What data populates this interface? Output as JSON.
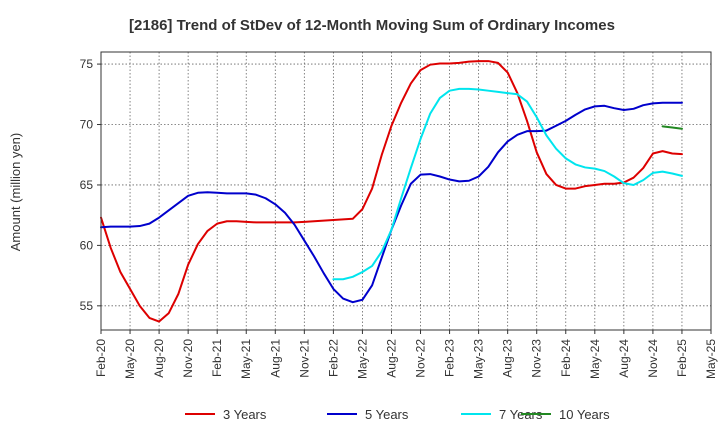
{
  "chart_data": {
    "type": "line",
    "title": "[2186]  Trend of StDev of 12-Month Moving Sum of Ordinary Incomes",
    "xlabel": "",
    "ylabel": "Amount (million yen)",
    "ylim": [
      53,
      76
    ],
    "yticks": [
      55,
      60,
      65,
      70,
      75
    ],
    "grid": true,
    "legend_position": "bottom",
    "x_tick_labels": [
      "Feb-20",
      "May-20",
      "Aug-20",
      "Nov-20",
      "Feb-21",
      "May-21",
      "Aug-21",
      "Nov-21",
      "Feb-22",
      "May-22",
      "Aug-22",
      "Nov-22",
      "Feb-23",
      "May-23",
      "Aug-23",
      "Nov-23",
      "Feb-24",
      "May-24",
      "Aug-24",
      "Nov-24",
      "Feb-25",
      "May-25"
    ],
    "x_axis_note": "x values are months since Feb-20 (0 = Feb-20, 63 = May-25)",
    "xlim": [
      0,
      63
    ],
    "series": [
      {
        "name": "3 Years",
        "color": "#dd0000",
        "x": [
          0,
          1,
          2,
          3,
          4,
          5,
          6,
          7,
          8,
          9,
          10,
          11,
          12,
          13,
          14,
          15,
          16,
          17,
          18,
          19,
          20,
          21,
          22,
          23,
          24,
          25,
          26,
          27,
          28,
          29,
          30,
          31,
          32,
          33,
          34,
          35,
          36,
          37,
          38,
          39,
          40,
          41,
          42,
          43,
          44,
          45,
          46,
          47,
          48,
          49,
          50,
          51,
          52,
          53,
          54,
          55,
          56,
          57,
          58,
          59,
          60
        ],
        "values": [
          62.3,
          59.8,
          57.8,
          56.4,
          55.0,
          54.0,
          53.7,
          54.4,
          56.0,
          58.4,
          60.1,
          61.2,
          61.8,
          62.0,
          62.0,
          61.95,
          61.9,
          61.9,
          61.9,
          61.9,
          61.9,
          61.95,
          62.0,
          62.05,
          62.1,
          62.15,
          62.2,
          63.0,
          64.7,
          67.5,
          69.9,
          71.8,
          73.4,
          74.5,
          74.95,
          75.05,
          75.05,
          75.1,
          75.2,
          75.25,
          75.25,
          75.1,
          74.3,
          72.6,
          70.3,
          67.7,
          65.9,
          65.0,
          64.7,
          64.7,
          64.9,
          65.0,
          65.1,
          65.1,
          65.2,
          65.6,
          66.4,
          67.6,
          67.8,
          67.6,
          67.55
        ]
      },
      {
        "name": "5 Years",
        "color": "#0000cc",
        "x": [
          0,
          1,
          2,
          3,
          4,
          5,
          6,
          7,
          8,
          9,
          10,
          11,
          12,
          13,
          14,
          15,
          16,
          17,
          18,
          19,
          20,
          21,
          22,
          23,
          24,
          25,
          26,
          27,
          28,
          29,
          30,
          31,
          32,
          33,
          34,
          35,
          36,
          37,
          38,
          39,
          40,
          41,
          42,
          43,
          44,
          45,
          46,
          47,
          48,
          49,
          50,
          51,
          52,
          53,
          54,
          55,
          56,
          57,
          58,
          59,
          60
        ],
        "values": [
          61.5,
          61.55,
          61.55,
          61.55,
          61.6,
          61.8,
          62.3,
          62.9,
          63.5,
          64.1,
          64.35,
          64.4,
          64.35,
          64.3,
          64.3,
          64.3,
          64.2,
          63.9,
          63.4,
          62.7,
          61.7,
          60.4,
          59.1,
          57.7,
          56.4,
          55.6,
          55.3,
          55.5,
          56.7,
          59.0,
          61.3,
          63.3,
          65.1,
          65.85,
          65.9,
          65.7,
          65.45,
          65.3,
          65.35,
          65.7,
          66.5,
          67.7,
          68.6,
          69.15,
          69.45,
          69.45,
          69.5,
          69.9,
          70.3,
          70.8,
          71.25,
          71.5,
          71.55,
          71.35,
          71.2,
          71.3,
          71.6,
          71.75,
          71.8,
          71.8,
          71.8
        ]
      },
      {
        "name": "7 Years",
        "color": "#00e5ee",
        "x": [
          24,
          25,
          26,
          27,
          28,
          29,
          30,
          31,
          32,
          33,
          34,
          35,
          36,
          37,
          38,
          39,
          40,
          41,
          42,
          43,
          44,
          45,
          46,
          47,
          48,
          49,
          50,
          51,
          52,
          53,
          54,
          55,
          56,
          57,
          58,
          59,
          60
        ],
        "values": [
          57.2,
          57.2,
          57.4,
          57.8,
          58.3,
          59.5,
          61.3,
          63.9,
          66.4,
          68.8,
          70.9,
          72.2,
          72.8,
          72.95,
          72.95,
          72.9,
          72.8,
          72.7,
          72.6,
          72.5,
          71.9,
          70.6,
          69.1,
          68.0,
          67.2,
          66.7,
          66.45,
          66.35,
          66.15,
          65.7,
          65.15,
          65.0,
          65.4,
          66.0,
          66.1,
          65.95,
          65.75
        ]
      },
      {
        "name": "10 Years",
        "color": "#228822",
        "x": [
          58,
          59,
          60
        ],
        "values": [
          69.85,
          69.75,
          69.65
        ]
      }
    ]
  }
}
